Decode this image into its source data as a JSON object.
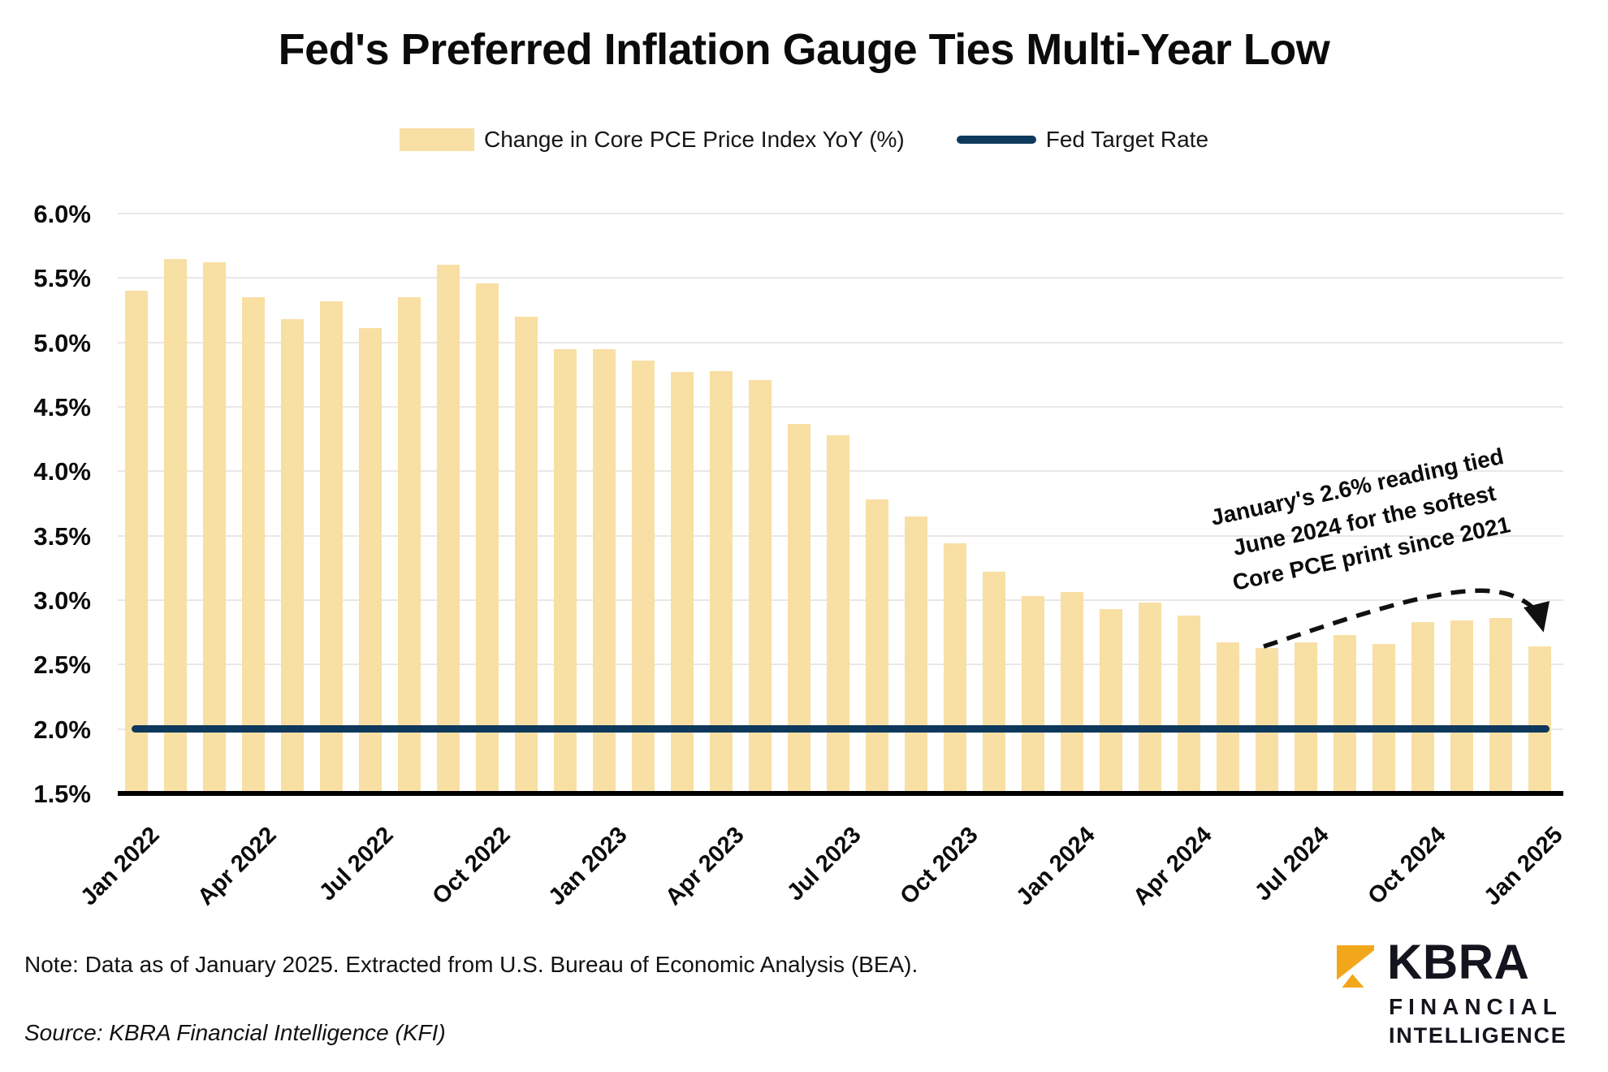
{
  "title": "Fed's Preferred Inflation Gauge Ties Multi-Year Low",
  "legend": {
    "bars_label": "Change in Core PCE Price Index YoY (%)",
    "line_label": "Fed Target Rate"
  },
  "chart_data": {
    "type": "bar",
    "title": "Fed's Preferred Inflation Gauge Ties Multi-Year Low",
    "categories": [
      "Jan 2022",
      "Feb 2022",
      "Mar 2022",
      "Apr 2022",
      "May 2022",
      "Jun 2022",
      "Jul 2022",
      "Aug 2022",
      "Sep 2022",
      "Oct 2022",
      "Nov 2022",
      "Dec 2022",
      "Jan 2023",
      "Feb 2023",
      "Mar 2023",
      "Apr 2023",
      "May 2023",
      "Jun 2023",
      "Jul 2023",
      "Aug 2023",
      "Sep 2023",
      "Oct 2023",
      "Nov 2023",
      "Dec 2023",
      "Jan 2024",
      "Feb 2024",
      "Mar 2024",
      "Apr 2024",
      "May 2024",
      "Jun 2024",
      "Jul 2024",
      "Aug 2024",
      "Sep 2024",
      "Oct 2024",
      "Nov 2024",
      "Dec 2024",
      "Jan 2025"
    ],
    "series": [
      {
        "name": "Change in Core PCE Price Index YoY (%)",
        "type": "bar",
        "values": [
          5.4,
          5.65,
          5.62,
          5.35,
          5.18,
          5.32,
          5.11,
          5.35,
          5.6,
          5.46,
          5.2,
          4.95,
          4.95,
          4.86,
          4.77,
          4.78,
          4.71,
          4.37,
          4.28,
          3.78,
          3.65,
          3.44,
          3.22,
          3.03,
          3.06,
          2.93,
          2.98,
          2.88,
          2.67,
          2.63,
          2.67,
          2.73,
          2.66,
          2.83,
          2.84,
          2.86,
          2.64
        ]
      },
      {
        "name": "Fed Target Rate",
        "type": "line",
        "constant_value": 2.0
      }
    ],
    "ylim": [
      1.5,
      6.0
    ],
    "y_ticks": [
      {
        "value": 6.0,
        "label": "6.0%"
      },
      {
        "value": 5.5,
        "label": "5.5%"
      },
      {
        "value": 5.0,
        "label": "5.0%"
      },
      {
        "value": 4.5,
        "label": "4.5%"
      },
      {
        "value": 4.0,
        "label": "4.0%"
      },
      {
        "value": 3.5,
        "label": "3.5%"
      },
      {
        "value": 3.0,
        "label": "3.0%"
      },
      {
        "value": 2.5,
        "label": "2.5%"
      },
      {
        "value": 2.0,
        "label": "2.0%"
      },
      {
        "value": 1.5,
        "label": "1.5%"
      }
    ],
    "x_tick_indices": [
      0,
      3,
      6,
      9,
      12,
      15,
      18,
      21,
      24,
      27,
      30,
      33,
      36
    ],
    "grid": "horizontal",
    "legend_position": "top"
  },
  "annotation": {
    "lines": [
      "January's 2.6% reading tied",
      "June 2024 for the softest",
      "Core PCE print since 2021"
    ]
  },
  "note": "Note: Data as of January 2025. Extracted from U.S. Bureau of Economic Analysis (BEA).",
  "source": "Source: KBRA Financial Intelligence (KFI)",
  "logo": {
    "brand": "KBRA",
    "line1": "FINANCIAL",
    "line2": "INTELLIGENCE"
  },
  "colors": {
    "bar": "#F8DFA3",
    "fed_line": "#0E395C",
    "gridline": "#EAE8E4",
    "axis": "#000000",
    "annotation_arrow": "#111111",
    "logo_gold": "#F2A71B",
    "logo_text": "#14141e"
  }
}
